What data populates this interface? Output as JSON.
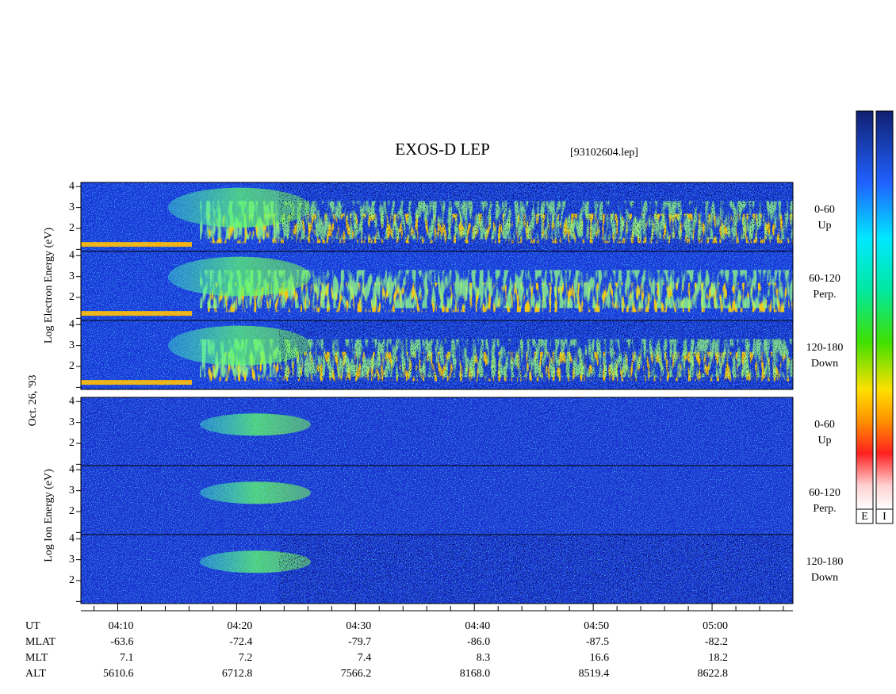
{
  "title": "EXOS-D LEP",
  "file": "[93102604.lep]",
  "electron_axis_label": "Log  Electron  Energy (eV)",
  "date": "Oct. 26, '93",
  "ion_axis_label": "Log  Ion  Energy (eV)",
  "ylim": [
    0.9,
    4.2
  ],
  "yticks": [
    2,
    3,
    4
  ],
  "yminor": [
    1
  ],
  "xlim": [
    6.9,
    66.8
  ],
  "xticks": [
    {
      "value": 10,
      "label": "04:10"
    },
    {
      "value": 20,
      "label": "04:20"
    },
    {
      "value": 30,
      "label": "04:30"
    },
    {
      "value": 40,
      "label": "04:40"
    },
    {
      "value": 50,
      "label": "04:50"
    },
    {
      "value": 60,
      "label": "05:00"
    }
  ],
  "xminor": [
    8,
    12,
    14,
    16,
    18,
    22,
    24,
    26,
    28,
    32,
    34,
    36,
    38,
    42,
    44,
    46,
    48,
    52,
    54,
    56,
    58,
    62,
    64,
    66
  ],
  "time_label": "UT",
  "orbit_rows": [
    {
      "label": "MLAT",
      "values": [
        "-63.6",
        "-72.4",
        "-79.7",
        "-86.0",
        "-87.5",
        "-82.2"
      ]
    },
    {
      "label": "MLT",
      "values": [
        "7.1",
        "7.2",
        "7.4",
        "8.3",
        "16.6",
        "18.2"
      ]
    },
    {
      "label": "ALT",
      "values": [
        "5610.6",
        "6712.8",
        "7566.2",
        "8168.0",
        "8519.4",
        "8622.8"
      ]
    }
  ],
  "panels": [
    {
      "angle": "0-60",
      "direction": "Up"
    },
    {
      "angle": "60-120",
      "direction": "Perp."
    },
    {
      "angle": "120-180",
      "direction": "Down"
    },
    {
      "angle": "0-60",
      "direction": "Up"
    },
    {
      "angle": "60-120",
      "direction": "Perp."
    },
    {
      "angle": "120-180",
      "direction": "Down"
    }
  ],
  "colorbars": [
    "E",
    "I"
  ]
}
